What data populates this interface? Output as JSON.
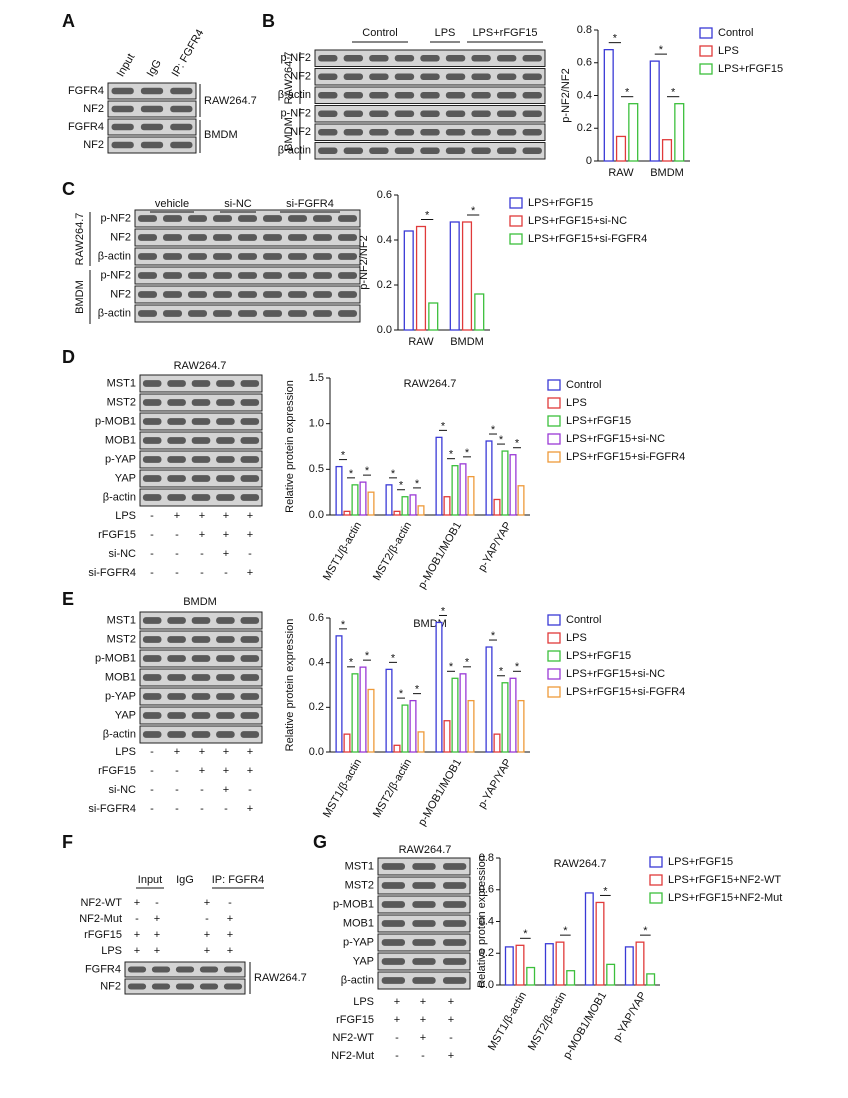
{
  "panel_letters": [
    "A",
    "B",
    "C",
    "D",
    "E",
    "F",
    "G"
  ],
  "blots": {
    "A": {
      "columns": [
        "Input",
        "IgG",
        "IP: FGFR4"
      ],
      "rows": [
        "FGFR4",
        "NF2",
        "FGFR4",
        "NF2"
      ],
      "groups": [
        "RAW264.7",
        "BMDM"
      ]
    },
    "B": {
      "columns": [
        "Control",
        "LPS",
        "LPS+rFGF15"
      ],
      "rows": [
        "p-NF2",
        "NF2",
        "β-actin",
        "p-NF2",
        "NF2",
        "β-actin"
      ],
      "groups": [
        "RAW264.7",
        "BMDM"
      ]
    },
    "C": {
      "columns": [
        "vehicle",
        "si-NC",
        "si-FGFR4"
      ],
      "rows": [
        "p-NF2",
        "NF2",
        "β-actin",
        "p-NF2",
        "NF2",
        "β-actin"
      ],
      "groups": [
        "RAW264.7",
        "BMDM"
      ]
    },
    "D": {
      "title": "RAW264.7",
      "rows": [
        "MST1",
        "MST2",
        "p-MOB1",
        "MOB1",
        "p-YAP",
        "YAP",
        "β-actin"
      ],
      "conditions": [
        {
          "name": "LPS",
          "signs": [
            "-",
            "+",
            "+",
            "+",
            "+"
          ]
        },
        {
          "name": "rFGF15",
          "signs": [
            "-",
            "-",
            "+",
            "+",
            "+"
          ]
        },
        {
          "name": "si-NC",
          "signs": [
            "-",
            "-",
            "-",
            "+",
            "-"
          ]
        },
        {
          "name": "si-FGFR4",
          "signs": [
            "-",
            "-",
            "-",
            "-",
            "+"
          ]
        }
      ]
    },
    "E": {
      "title": "BMDM",
      "rows": [
        "MST1",
        "MST2",
        "p-MOB1",
        "MOB1",
        "p-YAP",
        "YAP",
        "β-actin"
      ],
      "conditions": [
        {
          "name": "LPS",
          "signs": [
            "-",
            "+",
            "+",
            "+",
            "+"
          ]
        },
        {
          "name": "rFGF15",
          "signs": [
            "-",
            "-",
            "+",
            "+",
            "+"
          ]
        },
        {
          "name": "si-NC",
          "signs": [
            "-",
            "-",
            "-",
            "+",
            "-"
          ]
        },
        {
          "name": "si-FGFR4",
          "signs": [
            "-",
            "-",
            "-",
            "-",
            "+"
          ]
        }
      ]
    },
    "F": {
      "columns": [
        "Input",
        "IgG",
        "IP: FGFR4"
      ],
      "rows": [
        "FGFR4",
        "NF2"
      ],
      "groups": [
        "RAW264.7"
      ],
      "conditions": [
        {
          "name": "NF2-WT",
          "signs": [
            "+",
            "-",
            null,
            "+",
            "-"
          ]
        },
        {
          "name": "NF2-Mut",
          "signs": [
            "-",
            "+",
            null,
            "-",
            "+"
          ]
        },
        {
          "name": "rFGF15",
          "signs": [
            "+",
            "+",
            null,
            "+",
            "+"
          ]
        },
        {
          "name": "LPS",
          "signs": [
            "+",
            "+",
            null,
            "+",
            "+"
          ]
        }
      ]
    },
    "G": {
      "title": "RAW264.7",
      "rows": [
        "MST1",
        "MST2",
        "p-MOB1",
        "MOB1",
        "p-YAP",
        "YAP",
        "β-actin"
      ],
      "conditions": [
        {
          "name": "LPS",
          "signs": [
            "+",
            "+",
            "+"
          ]
        },
        {
          "name": "rFGF15",
          "signs": [
            "+",
            "+",
            "+"
          ]
        },
        {
          "name": "NF2-WT",
          "signs": [
            "-",
            "+",
            "-"
          ]
        },
        {
          "name": "NF2-Mut",
          "signs": [
            "-",
            "-",
            "+"
          ]
        }
      ]
    }
  },
  "chart_data": [
    {
      "type": "bar",
      "y_label": "p-NF2/NF2",
      "categories": [
        "RAW",
        "BMDM"
      ],
      "series": [
        {
          "name": "Control",
          "color": "#3a3ad6",
          "values": [
            0.68,
            0.61
          ]
        },
        {
          "name": "LPS",
          "color": "#e03a3a",
          "values": [
            0.15,
            0.13
          ]
        },
        {
          "name": "LPS+rFGF15",
          "color": "#3cbf3c",
          "values": [
            0.35,
            0.35
          ]
        }
      ],
      "ylim": [
        0,
        0.8
      ],
      "yticks": [
        0,
        0.2,
        0.4,
        0.6,
        0.8
      ],
      "significance": [
        {
          "label": "*",
          "category": 0,
          "from": 0,
          "to": 1
        },
        {
          "label": "*",
          "category": 0,
          "from": 1,
          "to": 2
        },
        {
          "label": "*",
          "category": 1,
          "from": 0,
          "to": 1
        },
        {
          "label": "*",
          "category": 1,
          "from": 1,
          "to": 2
        }
      ]
    },
    {
      "type": "bar",
      "y_label": "p-NF2/NF2",
      "categories": [
        "RAW",
        "BMDM"
      ],
      "series": [
        {
          "name": "LPS+rFGF15",
          "color": "#3a3ad6",
          "values": [
            0.44,
            0.48
          ]
        },
        {
          "name": "LPS+rFGF15+si-NC",
          "color": "#e03a3a",
          "values": [
            0.46,
            0.48
          ]
        },
        {
          "name": "LPS+rFGF15+si-FGFR4",
          "color": "#3cbf3c",
          "values": [
            0.12,
            0.16
          ]
        }
      ],
      "ylim": [
        0,
        0.6
      ],
      "yticks": [
        {
          "value": 0,
          "label": "0.0"
        },
        0.2,
        0.4,
        0.6
      ],
      "significance": [
        {
          "label": "*",
          "category": 0,
          "from": 1,
          "to": 2
        },
        {
          "label": "*",
          "category": 1,
          "from": 1,
          "to": 2
        }
      ]
    },
    {
      "type": "bar",
      "title": "RAW264.7",
      "y_label": "Relative protein expression",
      "categories": [
        "MST1/β-actin",
        "MST2/β-actin",
        "p-MOB1/MOB1",
        "p-YAP/YAP"
      ],
      "series": [
        {
          "name": "Control",
          "color": "#3a3ad6",
          "values": [
            0.53,
            0.33,
            0.85,
            0.81
          ]
        },
        {
          "name": "LPS",
          "color": "#e03a3a",
          "values": [
            0.04,
            0.04,
            0.2,
            0.17
          ]
        },
        {
          "name": "LPS+rFGF15",
          "color": "#3cbf3c",
          "values": [
            0.33,
            0.2,
            0.54,
            0.7
          ]
        },
        {
          "name": "LPS+rFGF15+si-NC",
          "color": "#9a3ad6",
          "values": [
            0.36,
            0.22,
            0.56,
            0.66
          ]
        },
        {
          "name": "LPS+rFGF15+si-FGFR4",
          "color": "#ee9a3a",
          "values": [
            0.25,
            0.1,
            0.42,
            0.32
          ]
        }
      ],
      "ylim": [
        0,
        1.5
      ],
      "yticks": [
        {
          "value": 0,
          "label": "0.0"
        },
        0.5,
        {
          "value": 1,
          "label": "1.0"
        },
        1.5
      ],
      "significance": [
        {
          "label": "*",
          "category": 0,
          "from": 0,
          "to": 1
        },
        {
          "label": "*",
          "category": 0,
          "from": 1,
          "to": 2
        },
        {
          "label": "*",
          "category": 0,
          "from": 3,
          "to": 4
        },
        {
          "label": "*",
          "category": 1,
          "from": 0,
          "to": 1
        },
        {
          "label": "*",
          "category": 1,
          "from": 1,
          "to": 2
        },
        {
          "label": "*",
          "category": 1,
          "from": 3,
          "to": 4
        },
        {
          "label": "*",
          "category": 2,
          "from": 0,
          "to": 1
        },
        {
          "label": "*",
          "category": 2,
          "from": 1,
          "to": 2
        },
        {
          "label": "*",
          "category": 2,
          "from": 3,
          "to": 4
        },
        {
          "label": "*",
          "category": 3,
          "from": 0,
          "to": 1
        },
        {
          "label": "*",
          "category": 3,
          "from": 1,
          "to": 2
        },
        {
          "label": "*",
          "category": 3,
          "from": 3,
          "to": 4
        }
      ]
    },
    {
      "type": "bar",
      "title": "BMDM",
      "y_label": "Relative protein expression",
      "categories": [
        "MST1/β-actin",
        "MST2/β-actin",
        "p-MOB1/MOB1",
        "p-YAP/YAP"
      ],
      "series": [
        {
          "name": "Control",
          "color": "#3a3ad6",
          "values": [
            0.52,
            0.37,
            0.58,
            0.47
          ]
        },
        {
          "name": "LPS",
          "color": "#e03a3a",
          "values": [
            0.08,
            0.03,
            0.14,
            0.08
          ]
        },
        {
          "name": "LPS+rFGF15",
          "color": "#3cbf3c",
          "values": [
            0.35,
            0.21,
            0.33,
            0.31
          ]
        },
        {
          "name": "LPS+rFGF15+si-NC",
          "color": "#9a3ad6",
          "values": [
            0.38,
            0.23,
            0.35,
            0.33
          ]
        },
        {
          "name": "LPS+rFGF15+si-FGFR4",
          "color": "#ee9a3a",
          "values": [
            0.28,
            0.09,
            0.23,
            0.23
          ]
        }
      ],
      "ylim": [
        0,
        0.6
      ],
      "yticks": [
        {
          "value": 0,
          "label": "0.0"
        },
        0.2,
        0.4,
        0.6
      ],
      "significance": [
        {
          "label": "*",
          "category": 0,
          "from": 0,
          "to": 1
        },
        {
          "label": "*",
          "category": 0,
          "from": 1,
          "to": 2
        },
        {
          "label": "*",
          "category": 0,
          "from": 3,
          "to": 4
        },
        {
          "label": "*",
          "category": 1,
          "from": 0,
          "to": 1
        },
        {
          "label": "*",
          "category": 1,
          "from": 1,
          "to": 2
        },
        {
          "label": "*",
          "category": 1,
          "from": 3,
          "to": 4
        },
        {
          "label": "*",
          "category": 2,
          "from": 0,
          "to": 1
        },
        {
          "label": "*",
          "category": 2,
          "from": 1,
          "to": 2
        },
        {
          "label": "*",
          "category": 2,
          "from": 3,
          "to": 4
        },
        {
          "label": "*",
          "category": 3,
          "from": 0,
          "to": 1
        },
        {
          "label": "*",
          "category": 3,
          "from": 1,
          "to": 2
        },
        {
          "label": "*",
          "category": 3,
          "from": 3,
          "to": 4
        }
      ]
    },
    {
      "type": "bar",
      "title": "RAW264.7",
      "y_label": "Relative protein expression",
      "categories": [
        "MST1/β-actin",
        "MST2/β-actin",
        "p-MOB1/MOB1",
        "p-YAP/YAP"
      ],
      "series": [
        {
          "name": "LPS+rFGF15",
          "color": "#3a3ad6",
          "values": [
            0.24,
            0.26,
            0.58,
            0.24
          ]
        },
        {
          "name": "LPS+rFGF15+NF2-WT",
          "color": "#e03a3a",
          "values": [
            0.25,
            0.27,
            0.52,
            0.27
          ]
        },
        {
          "name": "LPS+rFGF15+NF2-Mut",
          "color": "#3cbf3c",
          "values": [
            0.11,
            0.09,
            0.13,
            0.07
          ]
        }
      ],
      "ylim": [
        0,
        0.8
      ],
      "yticks": [
        {
          "value": 0,
          "label": "0.0"
        },
        0.2,
        0.4,
        0.6,
        0.8
      ],
      "significance": [
        {
          "label": "*",
          "category": 0,
          "from": 1,
          "to": 2
        },
        {
          "label": "*",
          "category": 1,
          "from": 1,
          "to": 2
        },
        {
          "label": "*",
          "category": 2,
          "from": 1,
          "to": 2
        },
        {
          "label": "*",
          "category": 3,
          "from": 1,
          "to": 2
        }
      ]
    }
  ]
}
